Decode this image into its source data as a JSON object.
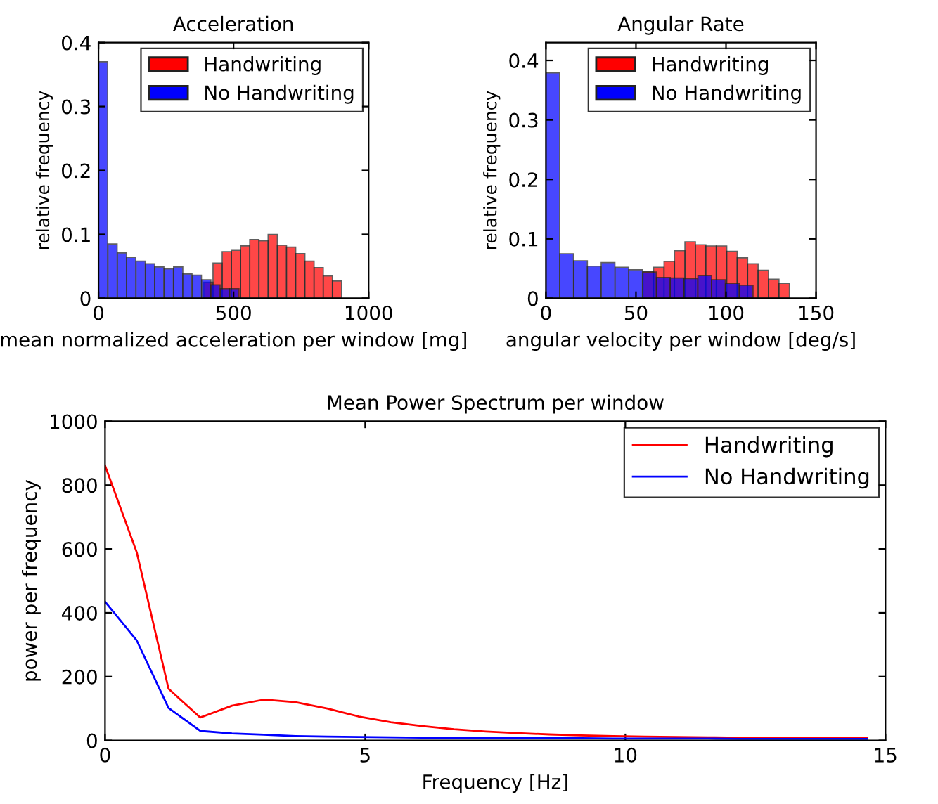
{
  "chart_data": [
    {
      "type": "bar",
      "title": "Acceleration",
      "xlabel": "mean normalized acceleration per window [mg]",
      "ylabel": "relative frequency",
      "xlim": [
        0,
        1000
      ],
      "ylim": [
        0,
        0.4
      ],
      "xticks": [
        0,
        500,
        1000
      ],
      "yticks": [
        0,
        0.1,
        0.2,
        0.3,
        0.4
      ],
      "legend": "top right",
      "series": [
        {
          "name": "Handwriting",
          "color": "#ff0000",
          "x": [
            407,
            441,
            475,
            509,
            543,
            577,
            611,
            645,
            679,
            713,
            747,
            781,
            815,
            849,
            883
          ],
          "values": [
            0.025,
            0.055,
            0.073,
            0.075,
            0.082,
            0.092,
            0.09,
            0.1,
            0.083,
            0.08,
            0.07,
            0.058,
            0.048,
            0.035,
            0.027
          ]
        },
        {
          "name": "No Handwriting",
          "color": "#0000ff",
          "x": [
            17,
            52,
            87,
            121,
            156,
            191,
            225,
            260,
            295,
            329,
            364,
            399,
            433,
            468,
            503
          ],
          "values": [
            0.37,
            0.085,
            0.071,
            0.064,
            0.058,
            0.054,
            0.049,
            0.046,
            0.049,
            0.038,
            0.036,
            0.029,
            0.021,
            0.015,
            0.015
          ]
        }
      ]
    },
    {
      "type": "bar",
      "title": "Angular Rate",
      "xlabel": "angular velocity per window [deg/s]",
      "ylabel": "relative frequency",
      "xlim": [
        0,
        150
      ],
      "ylim": [
        0,
        0.43
      ],
      "xticks": [
        0,
        50,
        100,
        150
      ],
      "yticks": [
        0,
        0.1,
        0.2,
        0.3,
        0.4
      ],
      "legend": "top right",
      "series": [
        {
          "name": "Handwriting",
          "color": "#ff0000",
          "x": [
            56.9,
            62.7,
            68.5,
            74.3,
            80.1,
            85.9,
            91.7,
            97.5,
            103.3,
            109.1,
            114.9,
            120.7,
            126.5,
            132.3
          ],
          "values": [
            0.045,
            0.052,
            0.062,
            0.08,
            0.095,
            0.09,
            0.088,
            0.088,
            0.079,
            0.068,
            0.058,
            0.047,
            0.032,
            0.025
          ]
        },
        {
          "name": "No Handwriting",
          "color": "#0000ff",
          "x": [
            3.8,
            11.5,
            19.2,
            26.8,
            34.5,
            42.2,
            49.8,
            57.5,
            65.2,
            72.8,
            80.5,
            88.2,
            95.8,
            103.5,
            111.2
          ],
          "values": [
            0.379,
            0.075,
            0.063,
            0.054,
            0.06,
            0.052,
            0.048,
            0.044,
            0.035,
            0.034,
            0.033,
            0.038,
            0.031,
            0.025,
            0.022
          ]
        }
      ]
    },
    {
      "type": "line",
      "title": "Mean Power Spectrum per window",
      "xlabel": "Frequency [Hz]",
      "ylabel": "power per frequency",
      "xlim": [
        0,
        15
      ],
      "ylim": [
        0,
        1000
      ],
      "xticks": [
        0,
        5,
        10,
        15
      ],
      "yticks": [
        0,
        200,
        400,
        600,
        800,
        1000
      ],
      "legend": "top right",
      "marker": "none",
      "line_style": "solid",
      "x": [
        0,
        0.61,
        1.22,
        1.83,
        2.44,
        3.05,
        3.66,
        4.27,
        4.88,
        5.49,
        6.1,
        6.71,
        7.32,
        7.93,
        8.54,
        9.15,
        9.76,
        10.37,
        10.98,
        11.59,
        12.2,
        12.81,
        13.42,
        14.03,
        14.64
      ],
      "series": [
        {
          "name": "Handwriting",
          "color": "#ff0000",
          "values": [
            861,
            589,
            162,
            72,
            109,
            128,
            120,
            100,
            75,
            57,
            45,
            35,
            28,
            23,
            19,
            16,
            14,
            12,
            11,
            10,
            9,
            9,
            8,
            8,
            7
          ]
        },
        {
          "name": "No Handwriting",
          "color": "#0000ff",
          "values": [
            435,
            313,
            102,
            30,
            22,
            18,
            14,
            12,
            11,
            10,
            9,
            8,
            8,
            7,
            7,
            7,
            6,
            6,
            6,
            6,
            5,
            5,
            5,
            5,
            5
          ]
        }
      ]
    }
  ]
}
